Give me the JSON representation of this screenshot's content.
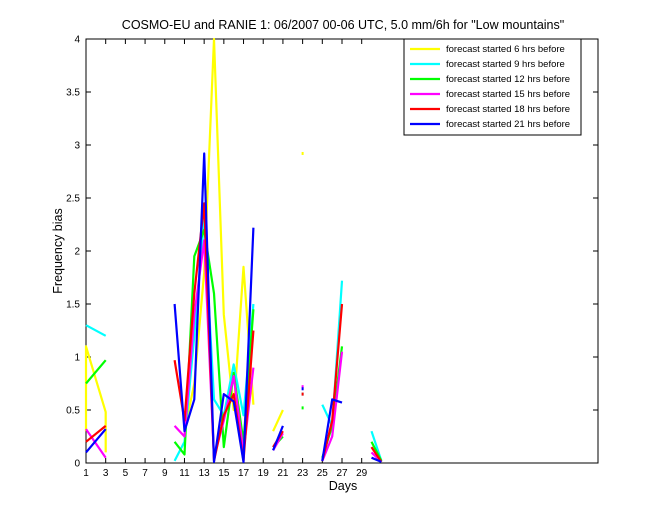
{
  "chart_data": {
    "type": "line",
    "title": "COSMO-EU and RANIE 1: 06/2007 00-06 UTC, 5.0 mm/6h for \"Low mountains\"",
    "xlabel": "Days",
    "ylabel": "Frequency bias",
    "xlim": [
      1,
      53
    ],
    "ylim": [
      0,
      4
    ],
    "xticks": [
      1,
      3,
      5,
      7,
      9,
      11,
      13,
      15,
      17,
      19,
      21,
      23,
      25,
      27,
      29
    ],
    "yticks": [
      0,
      0.5,
      1,
      1.5,
      2,
      2.5,
      3,
      3.5,
      4
    ],
    "grid": false,
    "legend_position": "top-right",
    "series": [
      {
        "name": "forecast started 6 hrs before",
        "color": "#ffff00",
        "points": [
          [
            1,
            0.3
          ],
          [
            1,
            1.1
          ],
          [
            3,
            0.48
          ],
          [
            3,
            0.1
          ],
          null,
          [
            11,
            0.3
          ],
          [
            12,
            0.75
          ],
          [
            13,
            1.8
          ],
          [
            14,
            4.0
          ],
          [
            15,
            1.4
          ],
          [
            16,
            0.5
          ],
          [
            17,
            1.85
          ],
          [
            18,
            0.55
          ],
          null,
          [
            20,
            0.3
          ],
          [
            21,
            0.5
          ],
          null,
          [
            23,
            2.92
          ]
        ]
      },
      {
        "name": "forecast started 9 hrs before",
        "color": "#00ffff",
        "points": [
          [
            1,
            1.3
          ],
          [
            3,
            1.2
          ],
          null,
          [
            10,
            0.02
          ],
          [
            11,
            0.2
          ],
          [
            12,
            1.2
          ],
          [
            13,
            2.3
          ],
          [
            14,
            0.6
          ],
          [
            15,
            0.45
          ],
          [
            16,
            0.93
          ],
          [
            17,
            0.45
          ],
          [
            18,
            1.5
          ],
          null,
          [
            23,
            0.65
          ],
          null,
          [
            25,
            0.55
          ],
          [
            26,
            0.35
          ],
          [
            27,
            1.72
          ],
          null,
          [
            30,
            0.3
          ],
          [
            31,
            0.02
          ]
        ]
      },
      {
        "name": "forecast started 12 hrs before",
        "color": "#00ff00",
        "points": [
          [
            1,
            0.75
          ],
          [
            3,
            0.97
          ],
          null,
          [
            10,
            0.2
          ],
          [
            11,
            0.08
          ],
          [
            12,
            1.95
          ],
          [
            13,
            2.2
          ],
          [
            14,
            1.6
          ],
          [
            15,
            0.15
          ],
          [
            16,
            0.85
          ],
          [
            17,
            0.2
          ],
          [
            18,
            1.45
          ],
          null,
          [
            20,
            0.15
          ],
          [
            21,
            0.25
          ],
          null,
          [
            23,
            0.52
          ],
          null,
          [
            25,
            0.05
          ],
          [
            26,
            0.35
          ],
          [
            27,
            1.1
          ],
          null,
          [
            30,
            0.2
          ],
          [
            31,
            0.02
          ]
        ]
      },
      {
        "name": "forecast started 15 hrs before",
        "color": "#ff00ff",
        "points": [
          [
            1,
            0.32
          ],
          [
            3,
            0.05
          ],
          null,
          [
            10,
            0.35
          ],
          [
            11,
            0.25
          ],
          [
            12,
            1.4
          ],
          [
            13,
            2.1
          ],
          [
            14,
            0.05
          ],
          [
            15,
            0.4
          ],
          [
            16,
            0.82
          ],
          [
            17,
            0.1
          ],
          [
            18,
            0.9
          ],
          null,
          [
            20,
            0.12
          ],
          [
            21,
            0.28
          ],
          null,
          [
            23,
            0.72
          ],
          null,
          [
            25,
            0.02
          ],
          [
            26,
            0.25
          ],
          [
            27,
            1.05
          ],
          null,
          [
            30,
            0.1
          ],
          [
            31,
            0.01
          ]
        ]
      },
      {
        "name": "forecast started 18 hrs before",
        "color": "#ff0000",
        "points": [
          [
            1,
            0.2
          ],
          [
            3,
            0.35
          ],
          null,
          [
            10,
            0.97
          ],
          [
            11,
            0.4
          ],
          [
            12,
            1.6
          ],
          [
            13,
            2.45
          ],
          [
            14,
            0.02
          ],
          [
            15,
            0.45
          ],
          [
            16,
            0.65
          ],
          [
            17,
            0.02
          ],
          [
            18,
            1.25
          ],
          null,
          [
            20,
            0.15
          ],
          [
            21,
            0.3
          ],
          null,
          [
            23,
            0.65
          ],
          null,
          [
            25,
            0.02
          ],
          [
            26,
            0.4
          ],
          [
            27,
            1.5
          ],
          null,
          [
            30,
            0.15
          ],
          [
            31,
            0.01
          ]
        ]
      },
      {
        "name": "forecast started 21 hrs before",
        "color": "#0000ff",
        "points": [
          [
            1,
            0.1
          ],
          [
            3,
            0.32
          ],
          null,
          [
            10,
            1.5
          ],
          [
            11,
            0.3
          ],
          [
            12,
            0.6
          ],
          [
            13,
            2.92
          ],
          [
            14,
            0.01
          ],
          [
            15,
            0.65
          ],
          [
            16,
            0.58
          ],
          [
            17,
            0.01
          ],
          [
            18,
            2.22
          ],
          null,
          [
            20,
            0.12
          ],
          [
            21,
            0.35
          ],
          null,
          [
            23,
            0.7
          ],
          null,
          [
            25,
            0.02
          ],
          [
            26,
            0.6
          ],
          [
            27,
            0.57
          ],
          null,
          [
            30,
            0.05
          ],
          [
            31,
            0.01
          ]
        ]
      }
    ]
  }
}
